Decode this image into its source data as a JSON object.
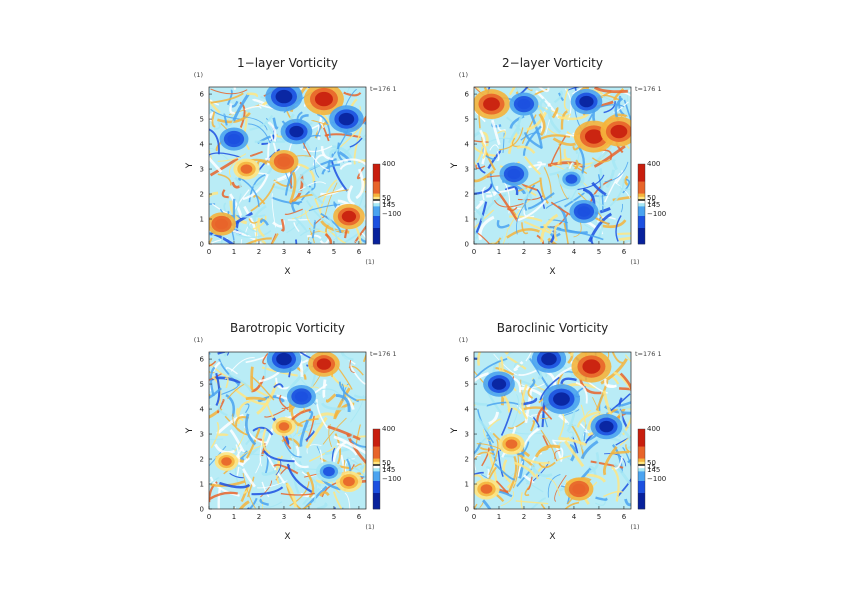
{
  "chart_data": [
    {
      "type": "heatmap",
      "title": "1−layer Vorticity",
      "xlabel": "X",
      "ylabel": "Y",
      "x_unit": "(1)",
      "y_unit": "(1)",
      "time_label": "t=176 1",
      "xlim": [
        0,
        6.2832
      ],
      "ylim": [
        0,
        6.2832
      ],
      "xticks": [
        "0",
        "1",
        "2",
        "3",
        "4",
        "5",
        "6"
      ],
      "yticks": [
        "0",
        "1",
        "2",
        "3",
        "4",
        "5",
        "6"
      ],
      "colorbar": {
        "min_label": "−100",
        "max_label": "400",
        "mid_labels": [
          "50",
          "15",
          "145"
        ]
      },
      "features": [
        {
          "kind": "positive",
          "x": 4.6,
          "y": 5.8,
          "strength": 1.0
        },
        {
          "kind": "negative",
          "x": 3.0,
          "y": 5.9,
          "strength": 0.9
        },
        {
          "kind": "negative",
          "x": 5.5,
          "y": 5.0,
          "strength": 0.8
        },
        {
          "kind": "negative",
          "x": 3.5,
          "y": 4.5,
          "strength": 0.7
        },
        {
          "kind": "positive",
          "x": 3.0,
          "y": 3.3,
          "strength": 0.6
        },
        {
          "kind": "positive",
          "x": 5.6,
          "y": 1.1,
          "strength": 0.7
        },
        {
          "kind": "positive",
          "x": 0.5,
          "y": 0.8,
          "strength": 0.6
        },
        {
          "kind": "negative",
          "x": 1.0,
          "y": 4.2,
          "strength": 0.6
        },
        {
          "kind": "positive",
          "x": 1.5,
          "y": 3.0,
          "strength": 0.5
        }
      ]
    },
    {
      "type": "heatmap",
      "title": "2−layer Vorticity",
      "xlabel": "X",
      "ylabel": "Y",
      "x_unit": "(1)",
      "y_unit": "(1)",
      "time_label": "t=176 1",
      "xlim": [
        0,
        6.2832
      ],
      "ylim": [
        0,
        6.2832
      ],
      "xticks": [
        "0",
        "1",
        "2",
        "3",
        "4",
        "5",
        "6"
      ],
      "yticks": [
        "0",
        "1",
        "2",
        "3",
        "4",
        "5",
        "6"
      ],
      "colorbar": {
        "min_label": "−100",
        "max_label": "400",
        "mid_labels": [
          "50",
          "15",
          "145"
        ]
      },
      "features": [
        {
          "kind": "positive",
          "x": 4.8,
          "y": 4.3,
          "strength": 1.0
        },
        {
          "kind": "positive",
          "x": 0.7,
          "y": 5.6,
          "strength": 0.9
        },
        {
          "kind": "positive",
          "x": 5.8,
          "y": 4.5,
          "strength": 0.9
        },
        {
          "kind": "negative",
          "x": 4.5,
          "y": 5.7,
          "strength": 0.7
        },
        {
          "kind": "negative",
          "x": 2.0,
          "y": 5.6,
          "strength": 0.6
        },
        {
          "kind": "negative",
          "x": 1.6,
          "y": 2.8,
          "strength": 0.6
        },
        {
          "kind": "negative",
          "x": 3.9,
          "y": 2.6,
          "strength": 0.5
        },
        {
          "kind": "negative",
          "x": 4.4,
          "y": 1.3,
          "strength": 0.6
        }
      ]
    },
    {
      "type": "heatmap",
      "title": "Barotropic Vorticity",
      "xlabel": "X",
      "ylabel": "Y",
      "x_unit": "(1)",
      "y_unit": "(1)",
      "time_label": "t=176 1",
      "xlim": [
        0,
        6.2832
      ],
      "ylim": [
        0,
        6.2832
      ],
      "xticks": [
        "0",
        "1",
        "2",
        "3",
        "4",
        "5",
        "6"
      ],
      "yticks": [
        "0",
        "1",
        "2",
        "3",
        "4",
        "5",
        "6"
      ],
      "colorbar": {
        "min_label": "−100",
        "max_label": "400",
        "mid_labels": [
          "50",
          "15",
          "145"
        ]
      },
      "features": [
        {
          "kind": "negative",
          "x": 3.0,
          "y": 6.0,
          "strength": 0.8
        },
        {
          "kind": "positive",
          "x": 4.6,
          "y": 5.8,
          "strength": 0.7
        },
        {
          "kind": "negative",
          "x": 3.7,
          "y": 4.5,
          "strength": 0.6
        },
        {
          "kind": "positive",
          "x": 3.0,
          "y": 3.3,
          "strength": 0.4
        },
        {
          "kind": "positive",
          "x": 5.6,
          "y": 1.1,
          "strength": 0.5
        },
        {
          "kind": "positive",
          "x": 0.7,
          "y": 1.9,
          "strength": 0.4
        },
        {
          "kind": "negative",
          "x": 4.8,
          "y": 1.5,
          "strength": 0.5
        }
      ]
    },
    {
      "type": "heatmap",
      "title": "Baroclinic Vorticity",
      "xlabel": "X",
      "ylabel": "Y",
      "x_unit": "(1)",
      "y_unit": "(1)",
      "time_label": "t=176 1",
      "xlim": [
        0,
        6.2832
      ],
      "ylim": [
        0,
        6.2832
      ],
      "xticks": [
        "0",
        "1",
        "2",
        "3",
        "4",
        "5",
        "6"
      ],
      "yticks": [
        "0",
        "1",
        "2",
        "3",
        "4",
        "5",
        "6"
      ],
      "colorbar": {
        "min_label": "−100",
        "max_label": "400",
        "mid_labels": [
          "50",
          "15",
          "145"
        ]
      },
      "features": [
        {
          "kind": "positive",
          "x": 4.7,
          "y": 5.7,
          "strength": 1.0
        },
        {
          "kind": "negative",
          "x": 3.0,
          "y": 6.0,
          "strength": 0.8
        },
        {
          "kind": "negative",
          "x": 3.5,
          "y": 4.4,
          "strength": 0.9
        },
        {
          "kind": "negative",
          "x": 1.0,
          "y": 5.0,
          "strength": 0.7
        },
        {
          "kind": "negative",
          "x": 5.3,
          "y": 3.3,
          "strength": 0.7
        },
        {
          "kind": "positive",
          "x": 1.5,
          "y": 2.6,
          "strength": 0.5
        },
        {
          "kind": "positive",
          "x": 4.2,
          "y": 0.8,
          "strength": 0.6
        },
        {
          "kind": "positive",
          "x": 0.5,
          "y": 0.8,
          "strength": 0.5
        }
      ]
    }
  ],
  "colorscale": [
    "#08219c",
    "#1c50e0",
    "#4aa3f0",
    "#a6e8f5",
    "#ffffff",
    "#ffe682",
    "#f5b43c",
    "#e8642a",
    "#c81e0e"
  ]
}
